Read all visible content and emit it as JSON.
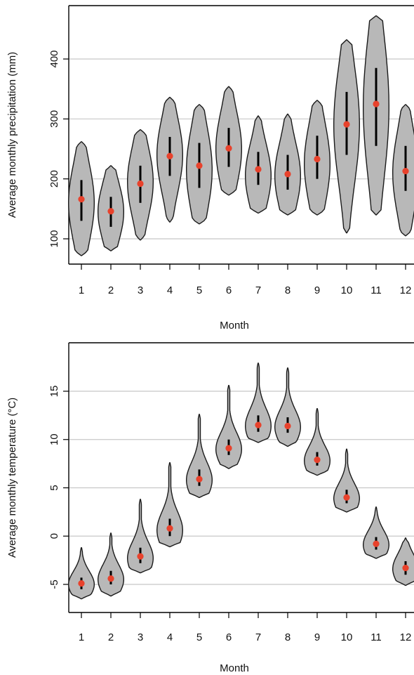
{
  "chart_data": [
    {
      "type": "violin",
      "xlabel": "Month",
      "ylabel": "Average monthly precipitation (mm)",
      "categories": [
        "1",
        "2",
        "3",
        "4",
        "5",
        "6",
        "7",
        "8",
        "9",
        "10",
        "11",
        "12"
      ],
      "yticks": [
        100,
        200,
        300,
        400
      ],
      "ylim": [
        75,
        470
      ],
      "grid": true,
      "point_color": "#e8422c",
      "violin_color": "#b8b8b8",
      "series": [
        {
          "month": "1",
          "mean": 166,
          "min": 72,
          "max": 262,
          "q1": 130,
          "q3": 198,
          "mode": 160
        },
        {
          "month": "2",
          "mean": 146,
          "min": 80,
          "max": 222,
          "q1": 120,
          "q3": 170,
          "mode": 145
        },
        {
          "month": "3",
          "mean": 192,
          "min": 98,
          "max": 282,
          "q1": 160,
          "q3": 222,
          "mode": 195
        },
        {
          "month": "4",
          "mean": 238,
          "min": 128,
          "max": 336,
          "q1": 205,
          "q3": 270,
          "mode": 240
        },
        {
          "month": "5",
          "mean": 222,
          "min": 125,
          "max": 324,
          "q1": 185,
          "q3": 260,
          "mode": 215
        },
        {
          "month": "6",
          "mean": 251,
          "min": 173,
          "max": 354,
          "q1": 220,
          "q3": 285,
          "mode": 250
        },
        {
          "month": "7",
          "mean": 216,
          "min": 143,
          "max": 305,
          "q1": 190,
          "q3": 245,
          "mode": 205
        },
        {
          "month": "8",
          "mean": 208,
          "min": 140,
          "max": 308,
          "q1": 182,
          "q3": 240,
          "mode": 205
        },
        {
          "month": "9",
          "mean": 233,
          "min": 140,
          "max": 331,
          "q1": 200,
          "q3": 272,
          "mode": 225
        },
        {
          "month": "10",
          "mean": 291,
          "min": 110,
          "max": 432,
          "q1": 240,
          "q3": 345,
          "mode": 290
        },
        {
          "month": "11",
          "mean": 325,
          "min": 140,
          "max": 472,
          "q1": 255,
          "q3": 385,
          "mode": 320
        },
        {
          "month": "12",
          "mean": 213,
          "min": 105,
          "max": 324,
          "q1": 180,
          "q3": 255,
          "mode": 210
        }
      ]
    },
    {
      "type": "violin",
      "xlabel": "Month",
      "ylabel": "Average monthly temperature (°C)",
      "categories": [
        "1",
        "2",
        "3",
        "4",
        "5",
        "6",
        "7",
        "8",
        "9",
        "10",
        "11",
        "12"
      ],
      "yticks": [
        -5,
        0,
        5,
        10,
        15
      ],
      "ylim": [
        -6.8,
        18
      ],
      "grid": true,
      "point_color": "#e8422c",
      "violin_color": "#b8b8b8",
      "series": [
        {
          "month": "1",
          "mean": -4.9,
          "min": -6.5,
          "max": -1.2,
          "q1": -5.5,
          "q3": -4.3,
          "mode": -5.0
        },
        {
          "month": "2",
          "mean": -4.4,
          "min": -6.2,
          "max": 0.3,
          "q1": -5.0,
          "q3": -3.6,
          "mode": -4.5
        },
        {
          "month": "3",
          "mean": -2.1,
          "min": -3.8,
          "max": 3.8,
          "q1": -2.8,
          "q3": -1.2,
          "mode": -2.3
        },
        {
          "month": "4",
          "mean": 0.8,
          "min": -1.1,
          "max": 7.6,
          "q1": 0.0,
          "q3": 1.8,
          "mode": 0.6
        },
        {
          "month": "5",
          "mean": 5.9,
          "min": 4.0,
          "max": 12.6,
          "q1": 5.2,
          "q3": 6.9,
          "mode": 5.8
        },
        {
          "month": "6",
          "mean": 9.1,
          "min": 7.0,
          "max": 15.6,
          "q1": 8.4,
          "q3": 10.0,
          "mode": 9.0
        },
        {
          "month": "7",
          "mean": 11.5,
          "min": 9.7,
          "max": 17.9,
          "q1": 10.8,
          "q3": 12.5,
          "mode": 11.4
        },
        {
          "month": "8",
          "mean": 11.4,
          "min": 9.3,
          "max": 17.4,
          "q1": 10.7,
          "q3": 12.3,
          "mode": 11.3
        },
        {
          "month": "9",
          "mean": 7.9,
          "min": 6.3,
          "max": 13.2,
          "q1": 7.3,
          "q3": 8.7,
          "mode": 7.8
        },
        {
          "month": "10",
          "mean": 4.0,
          "min": 2.5,
          "max": 9.0,
          "q1": 3.4,
          "q3": 4.8,
          "mode": 3.9
        },
        {
          "month": "11",
          "mean": -0.8,
          "min": -2.3,
          "max": 3.0,
          "q1": -1.4,
          "q3": -0.1,
          "mode": -0.9
        },
        {
          "month": "12",
          "mean": -3.3,
          "min": -5.1,
          "max": -0.2,
          "q1": -4.0,
          "q3": -2.6,
          "mode": -3.4
        }
      ]
    }
  ]
}
